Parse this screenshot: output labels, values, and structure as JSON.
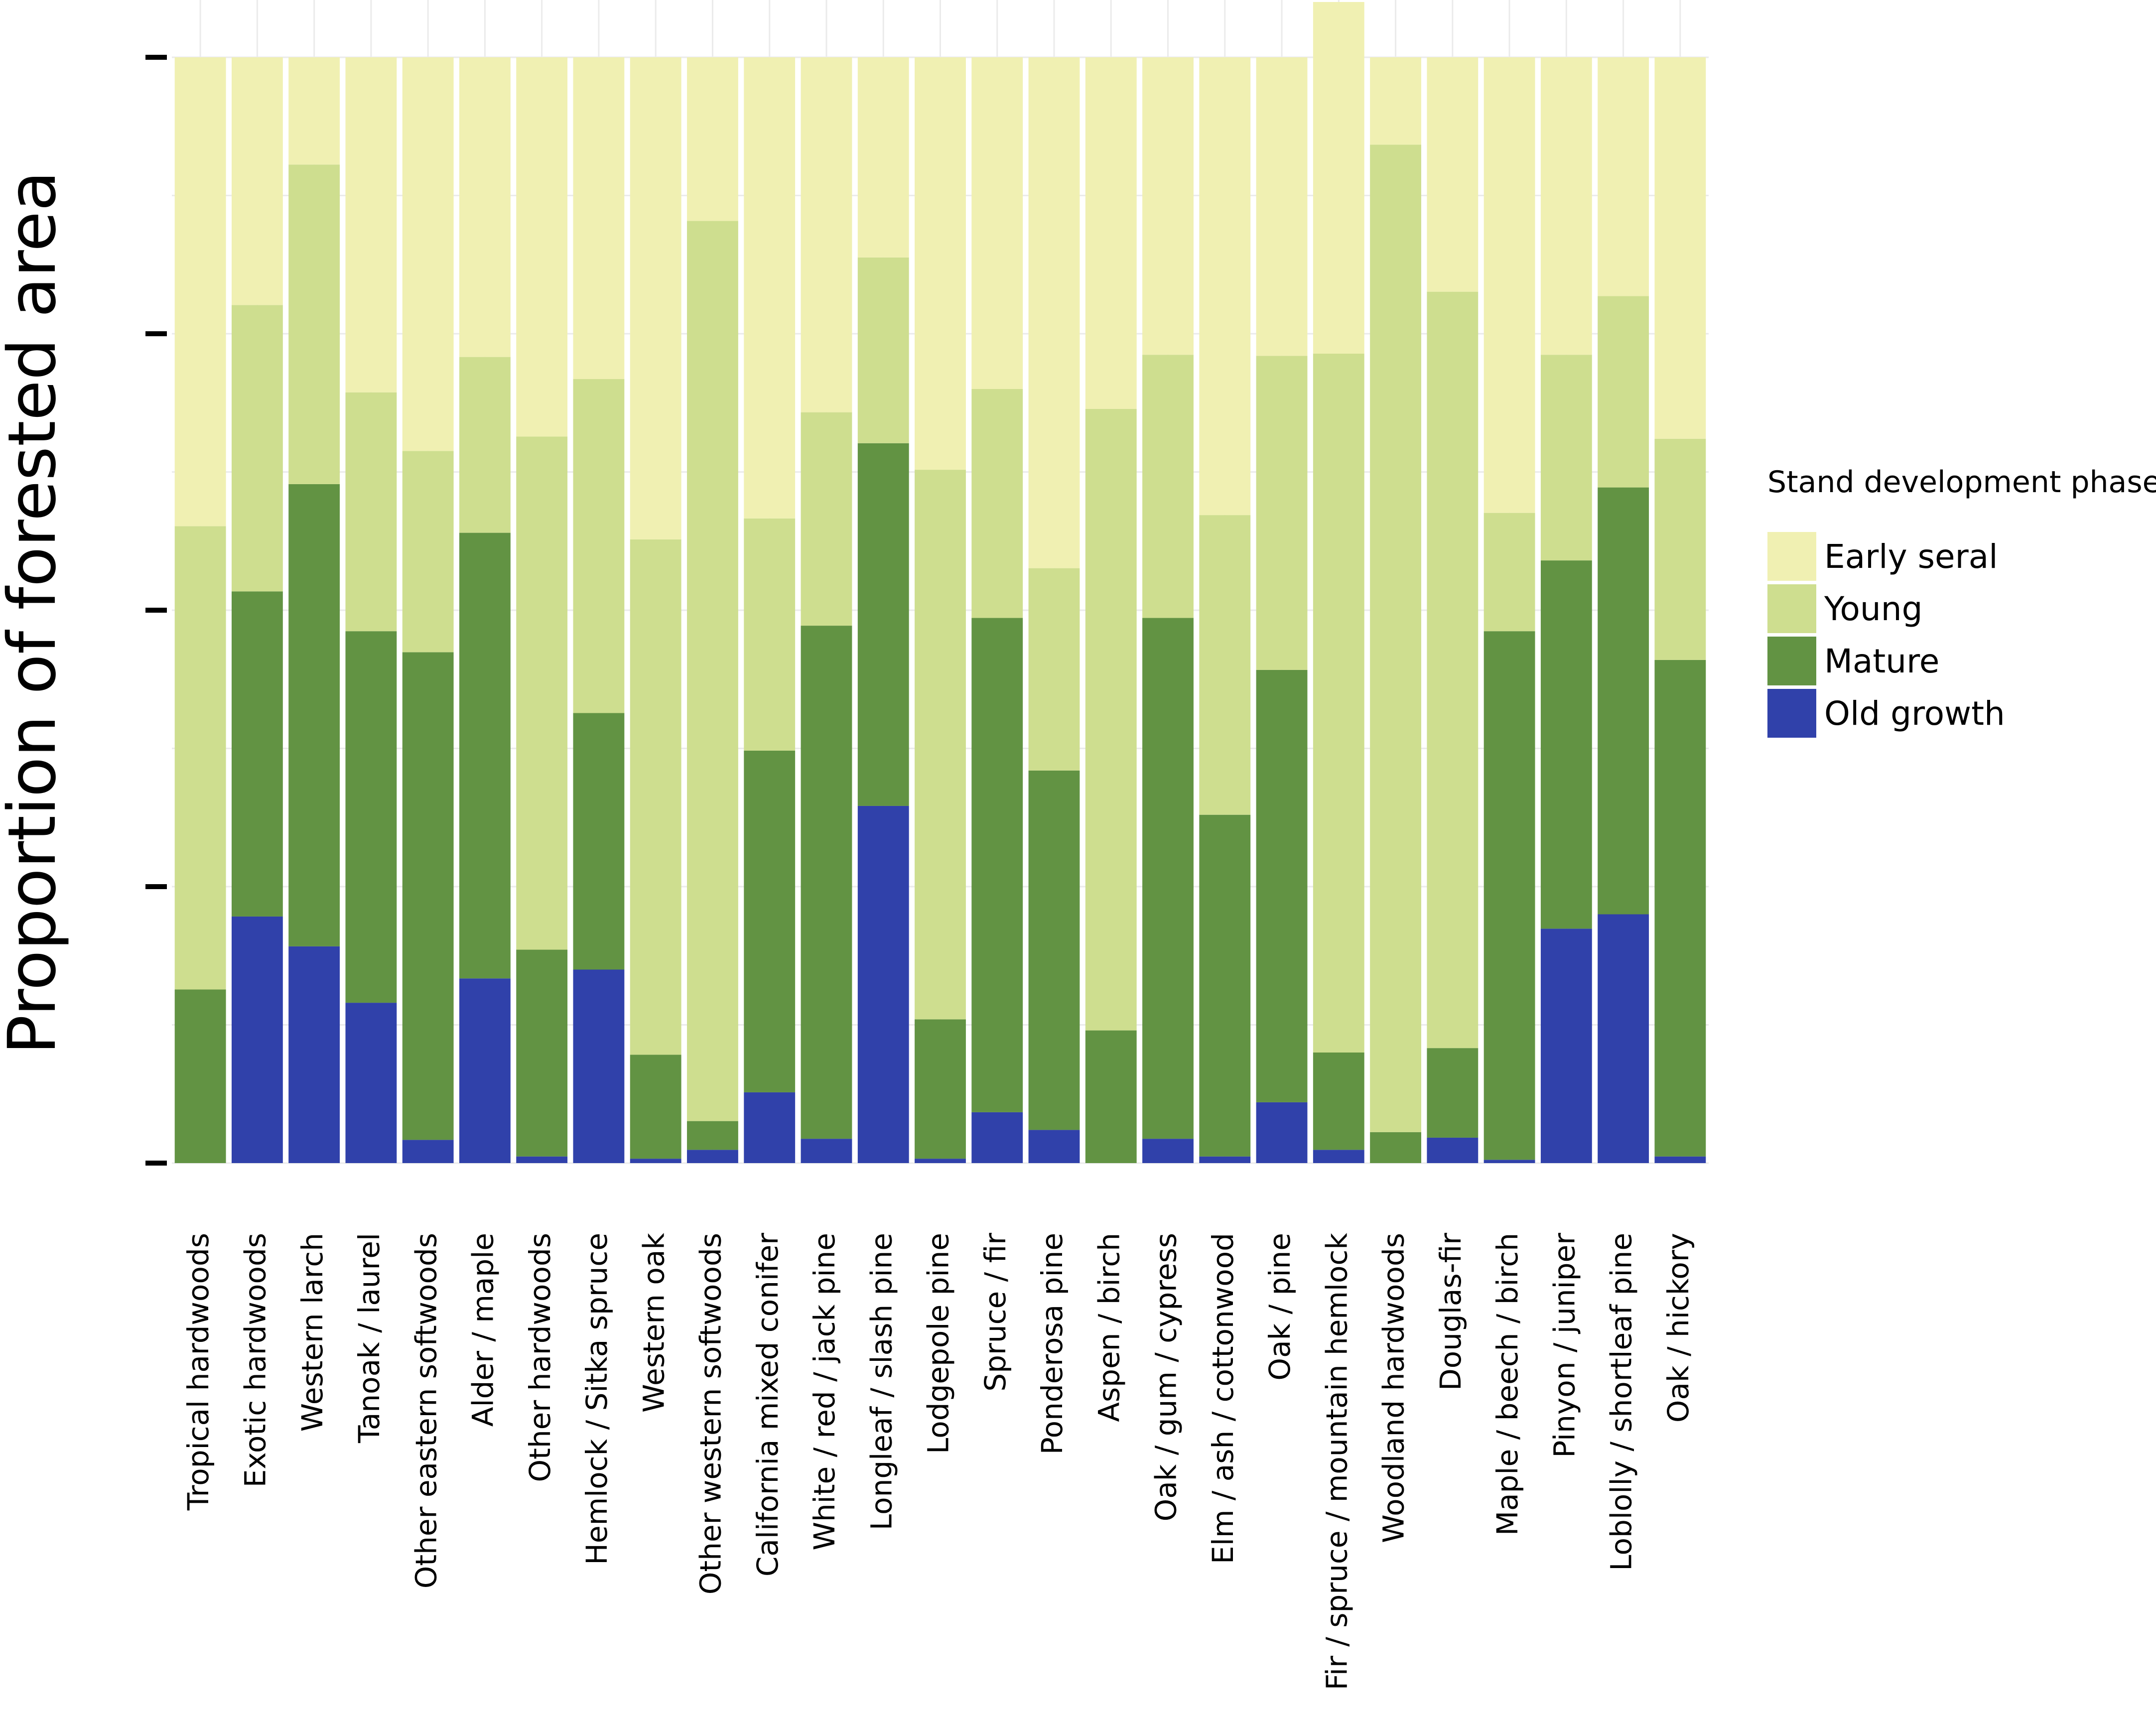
{
  "chart_data": {
    "type": "bar",
    "stacked": true,
    "title": "",
    "xlabel": "",
    "ylabel": "Proportion of forested area",
    "ylim": [
      0,
      1
    ],
    "y_ticks": [
      0,
      0.25,
      0.5,
      0.75,
      1.0
    ],
    "y_tick_labels_visible": false,
    "grid": true,
    "legend": {
      "title": "Stand development phase",
      "position": "right",
      "entries": [
        "Early seral",
        "Young",
        "Mature",
        "Old growth"
      ]
    },
    "colors": {
      "Early seral": "#f0f0b2",
      "Young": "#cede8f",
      "Mature": "#629343",
      "Old growth": "#3041aa"
    },
    "categories": [
      "Tropical hardwoods",
      "Exotic hardwoods",
      "Western larch",
      "Tanoak / laurel",
      "Other eastern softwoods",
      "Alder / maple",
      "Other hardwoods",
      "Hemlock / Sitka spruce",
      "Western oak",
      "Other western softwoods",
      "California mixed conifer",
      "White / red / jack pine",
      "Longleaf / slash pine",
      "Lodgepole pine",
      "Spruce / fir",
      "Ponderosa pine",
      "Aspen / birch",
      "Oak / gum / cypress",
      "Elm / ash / cottonwood",
      "Oak / pine",
      "Fir / spruce / mountain hemlock",
      "Woodland hardwoods",
      "Douglas-fir",
      "Maple / beech / birch",
      "Pinyon / juniper",
      "Loblolly / shortleaf pine",
      "Oak / hickory"
    ],
    "series": [
      {
        "name": "Old growth",
        "values": [
          0.0,
          0.223,
          0.196,
          0.145,
          0.021,
          0.167,
          0.006,
          0.175,
          0.004,
          0.012,
          0.064,
          0.022,
          0.323,
          0.004,
          0.046,
          0.03,
          0.0,
          0.022,
          0.006,
          0.055,
          0.012,
          0.0,
          0.023,
          0.003,
          0.212,
          0.225,
          0.006
        ]
      },
      {
        "name": "Mature",
        "values": [
          0.157,
          0.294,
          0.418,
          0.336,
          0.441,
          0.403,
          0.187,
          0.232,
          0.094,
          0.026,
          0.309,
          0.464,
          0.328,
          0.126,
          0.447,
          0.325,
          0.12,
          0.471,
          0.309,
          0.391,
          0.088,
          0.028,
          0.081,
          0.478,
          0.333,
          0.386,
          0.449
        ]
      },
      {
        "name": "Young",
        "values": [
          0.419,
          0.259,
          0.289,
          0.216,
          0.182,
          0.159,
          0.464,
          0.302,
          0.466,
          0.814,
          0.21,
          0.193,
          0.168,
          0.497,
          0.207,
          0.183,
          0.562,
          0.238,
          0.271,
          0.284,
          0.632,
          0.893,
          0.684,
          0.107,
          0.186,
          0.173,
          0.2
        ]
      },
      {
        "name": "Early seral",
        "values": [
          0.424,
          0.224,
          0.097,
          0.303,
          0.356,
          0.271,
          0.343,
          0.291,
          0.436,
          0.148,
          0.417,
          0.321,
          0.181,
          0.373,
          0.3,
          0.462,
          0.318,
          0.269,
          0.414,
          0.27,
          0.318,
          0.079,
          0.212,
          0.412,
          0.269,
          0.216,
          0.345
        ]
      }
    ]
  }
}
